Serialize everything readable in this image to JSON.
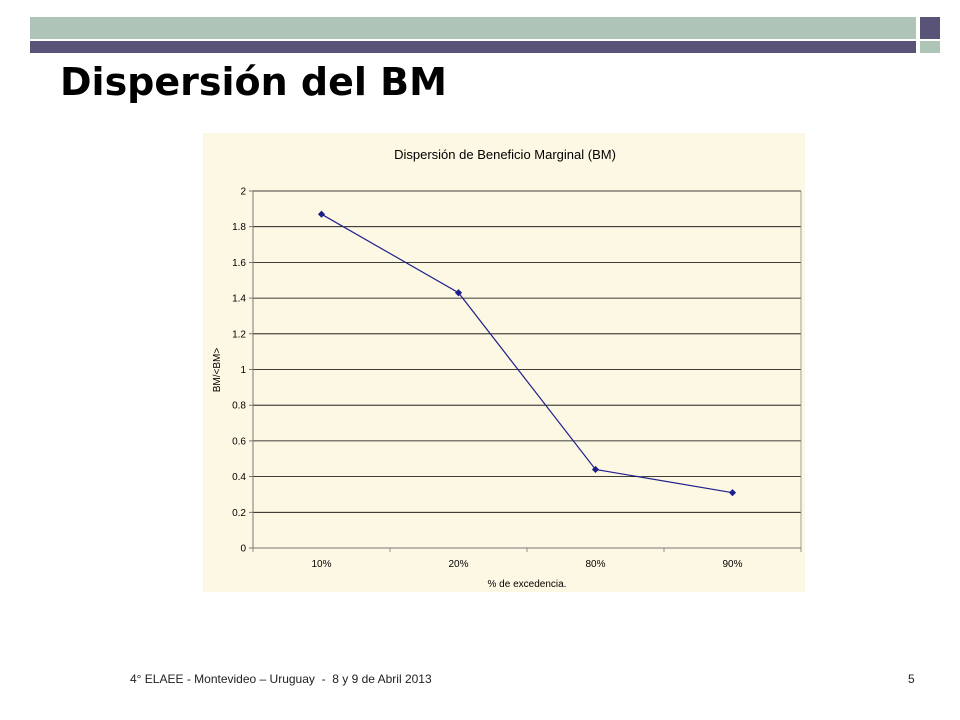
{
  "slide": {
    "title": "Dispersión del BM",
    "footer": "4° ELAEE - Montevideo – Uruguay  -  8 y 9 de Abril 2013",
    "page_number": "5"
  },
  "colors": {
    "accent_green": "#aec4b7",
    "accent_purple": "#5a5378",
    "series_line": "#1f1f8c",
    "chart_background": "#fdf8e4"
  },
  "chart_data": {
    "type": "line",
    "title": "Dispersión de Beneficio Marginal (BM)",
    "xlabel": "% de excedencia.",
    "ylabel": "BM/<BM>",
    "categories": [
      "10%",
      "20%",
      "80%",
      "90%"
    ],
    "series": [
      {
        "values": [
          1.87,
          1.43,
          0.44,
          0.31
        ]
      }
    ],
    "ylim": [
      0,
      2
    ],
    "yticks": [
      "0",
      "0.2",
      "0.4",
      "0.6",
      "0.8",
      "1",
      "1.2",
      "1.4",
      "1.6",
      "1.8",
      "2"
    ],
    "grid": true,
    "legend": "none"
  }
}
